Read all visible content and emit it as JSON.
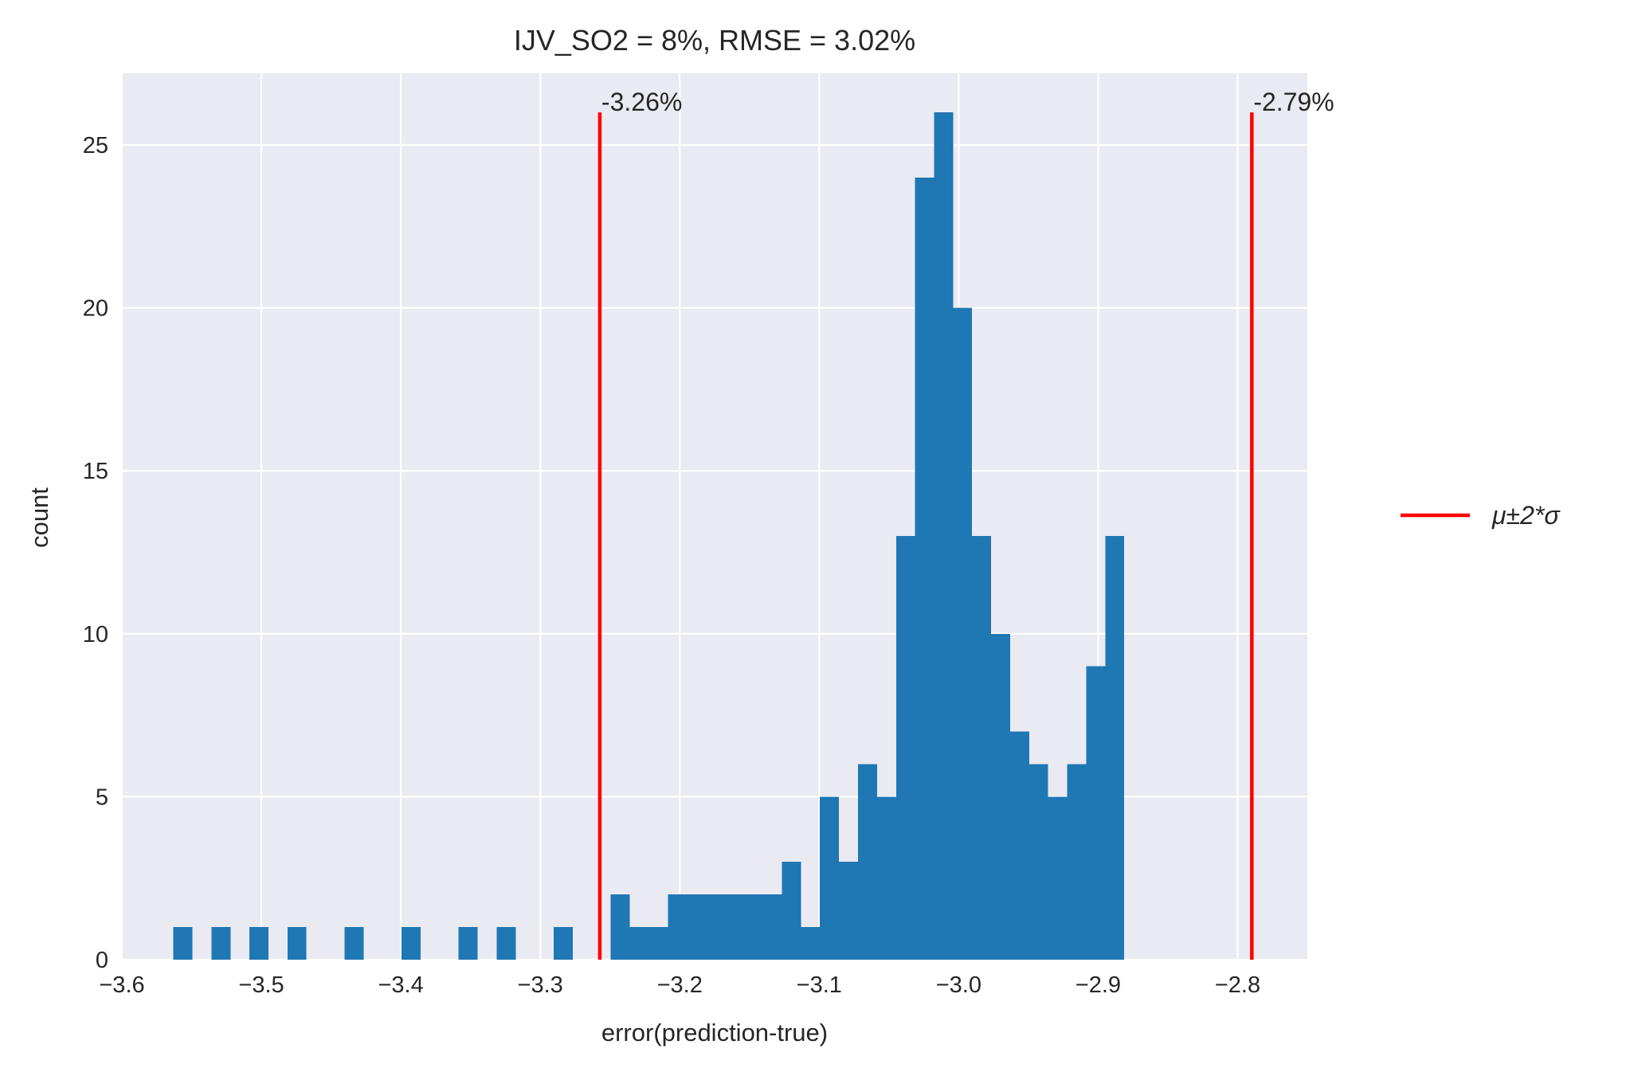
{
  "chart_data": {
    "type": "bar",
    "title": "IJV_SO2 = 8%, RMSE = 3.02%",
    "xlabel": "error(prediction-true)",
    "ylabel": "count",
    "xlim": [
      -3.6,
      -2.75
    ],
    "ylim": [
      0,
      27.2
    ],
    "x_ticks": [
      -3.6,
      -3.5,
      -3.4,
      -3.3,
      -3.2,
      -3.1,
      -3.0,
      -2.9,
      -2.8
    ],
    "x_tick_labels": [
      "−3.6",
      "−3.5",
      "−3.4",
      "−3.3",
      "−3.2",
      "−3.1",
      "−3.0",
      "−2.9",
      "−2.8"
    ],
    "y_ticks": [
      0,
      5,
      10,
      15,
      20,
      25
    ],
    "y_tick_labels": [
      "0",
      "5",
      "10",
      "15",
      "20",
      "25"
    ],
    "grid": true,
    "bar_color": "#1f77b4",
    "background": "#eaeaf2",
    "bin_width": 0.01364,
    "bins": [
      {
        "x0": -3.5631,
        "count": 1
      },
      {
        "x0": -3.5358,
        "count": 1
      },
      {
        "x0": -3.5085,
        "count": 1
      },
      {
        "x0": -3.4813,
        "count": 1
      },
      {
        "x0": -3.4404,
        "count": 1
      },
      {
        "x0": -3.3995,
        "count": 1
      },
      {
        "x0": -3.3586,
        "count": 1
      },
      {
        "x0": -3.3313,
        "count": 1
      },
      {
        "x0": -3.2904,
        "count": 1
      },
      {
        "x0": -3.2495,
        "count": 2
      },
      {
        "x0": -3.2358,
        "count": 1
      },
      {
        "x0": -3.2222,
        "count": 1
      },
      {
        "x0": -3.2085,
        "count": 2
      },
      {
        "x0": -3.1949,
        "count": 2
      },
      {
        "x0": -3.1813,
        "count": 2
      },
      {
        "x0": -3.1676,
        "count": 2
      },
      {
        "x0": -3.154,
        "count": 2
      },
      {
        "x0": -3.1404,
        "count": 2
      },
      {
        "x0": -3.1267,
        "count": 3
      },
      {
        "x0": -3.1131,
        "count": 1
      },
      {
        "x0": -3.0995,
        "count": 5
      },
      {
        "x0": -3.0858,
        "count": 3
      },
      {
        "x0": -3.0722,
        "count": 6
      },
      {
        "x0": -3.0585,
        "count": 5
      },
      {
        "x0": -3.0449,
        "count": 13
      },
      {
        "x0": -3.0313,
        "count": 24
      },
      {
        "x0": -3.0176,
        "count": 26
      },
      {
        "x0": -3.004,
        "count": 20
      },
      {
        "x0": -2.9904,
        "count": 13
      },
      {
        "x0": -2.9767,
        "count": 10
      },
      {
        "x0": -2.9631,
        "count": 7
      },
      {
        "x0": -2.9495,
        "count": 6
      },
      {
        "x0": -2.9358,
        "count": 5
      },
      {
        "x0": -2.9222,
        "count": 6
      },
      {
        "x0": -2.9085,
        "count": 9
      },
      {
        "x0": -2.8949,
        "count": 13
      }
    ],
    "vlines": [
      {
        "x": -3.2573,
        "ymax": 26,
        "label": "-3.26%",
        "color": "#ff0000"
      },
      {
        "x": -2.7898,
        "ymax": 26,
        "label": "-2.79%",
        "color": "#ff0000"
      }
    ],
    "legend": {
      "label": "μ±2*σ",
      "color": "#ff0000",
      "placement": "center right outside"
    }
  }
}
